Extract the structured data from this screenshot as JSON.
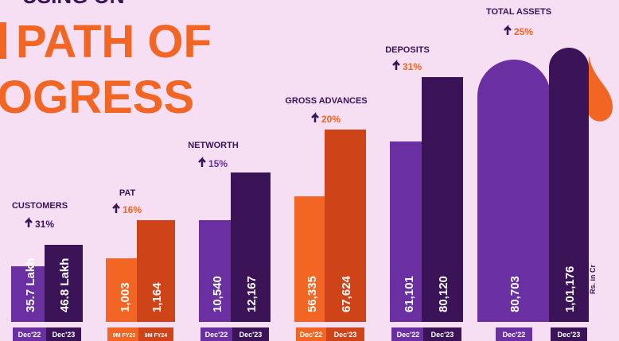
{
  "header": {
    "line1": "USING ON",
    "line2": "PATH OF",
    "line3": "OGRESS"
  },
  "groups": [
    {
      "label": "CUSTOMERS",
      "growth": "31%",
      "bars": [
        {
          "value": "35.7 Lakh",
          "period": "Dec'22"
        },
        {
          "value": "46.8 Lakh",
          "period": "Dec'23"
        }
      ]
    },
    {
      "label": "PAT",
      "growth": "16%",
      "bars": [
        {
          "value": "1,003",
          "period": "9M FY23"
        },
        {
          "value": "1,164",
          "period": "9M FY24"
        }
      ]
    },
    {
      "label": "NETWORTH",
      "growth": "15%",
      "bars": [
        {
          "value": "10,540",
          "period": "Dec'22"
        },
        {
          "value": "12,167",
          "period": "Dec'23"
        }
      ]
    },
    {
      "label": "GROSS ADVANCES",
      "growth": "20%",
      "bars": [
        {
          "value": "56,335",
          "period": "Dec'22"
        },
        {
          "value": "67,624",
          "period": "Dec'23"
        }
      ]
    },
    {
      "label": "DEPOSITS",
      "growth": "31%",
      "bars": [
        {
          "value": "61,101",
          "period": "Dec'22"
        },
        {
          "value": "80,120",
          "period": "Dec'23"
        }
      ]
    },
    {
      "label": "TOTAL ASSETS",
      "growth": "25%",
      "bars": [
        {
          "value": "80,703",
          "period": "Dec'22"
        },
        {
          "value": "1,01,176",
          "period": "Dec'23"
        }
      ]
    }
  ],
  "note": "Rs. in Cr"
}
